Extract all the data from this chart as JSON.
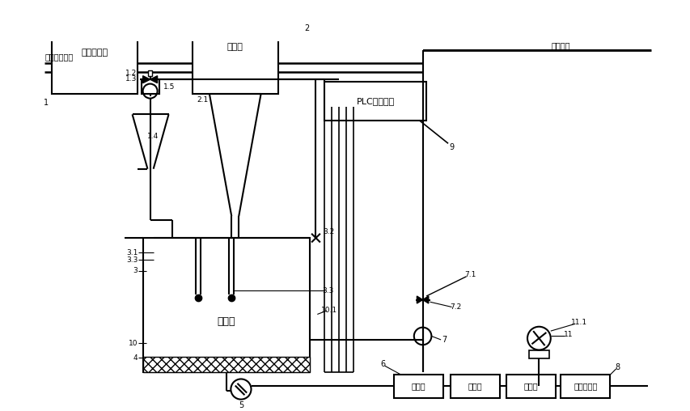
{
  "bg_color": "#ffffff",
  "line_color": "#000000",
  "inert_gas_label": "惰性气体总管",
  "water_label": "进水总管",
  "furnace_label": "金属熔炼炉",
  "tundish_label": "中间包",
  "atomizer_label": "雾化室",
  "plc_label": "PLC控制系统",
  "centrifuge_label": "离心机",
  "reducer_label": "还原炉",
  "sintering_label": "烧结室",
  "classifier_label": "粉体分选机"
}
